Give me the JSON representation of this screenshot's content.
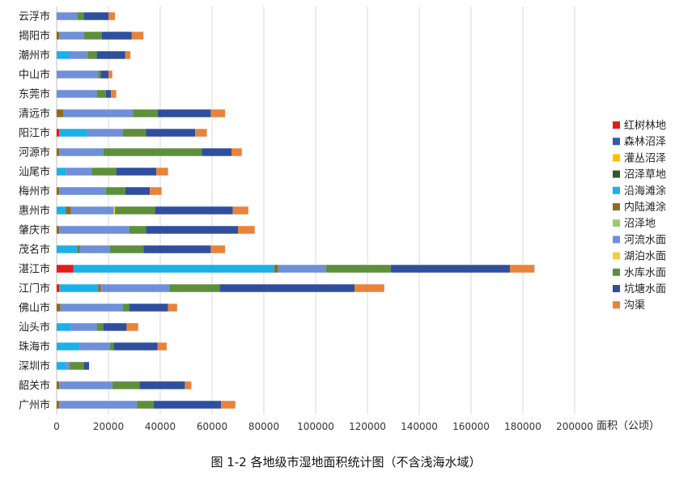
{
  "chart_data": {
    "type": "bar",
    "orientation": "horizontal",
    "stacked": true,
    "title": "图 1-2  各地级市湿地面积统计图（不含浅海水域）",
    "xlabel": "面积（公顷）",
    "ylabel": "",
    "xlim": [
      0,
      200000
    ],
    "xticks": [
      "0",
      "20000",
      "40000",
      "60000",
      "80000",
      "100000",
      "120000",
      "140000",
      "160000",
      "180000",
      "200000"
    ],
    "grid": true,
    "legend_position": "right",
    "categories": [
      "云浮市",
      "揭阳市",
      "潮州市",
      "中山市",
      "东莞市",
      "清远市",
      "阳江市",
      "河源市",
      "汕尾市",
      "梅州市",
      "惠州市",
      "肇庆市",
      "茂名市",
      "湛江市",
      "江门市",
      "佛山市",
      "汕头市",
      "珠海市",
      "深圳市",
      "韶关市",
      "广州市"
    ],
    "series": [
      {
        "name": "红树林地",
        "color": "#e41a1c",
        "values": [
          0,
          0,
          0,
          0,
          0,
          0,
          1000,
          0,
          0,
          0,
          0,
          0,
          0,
          6500,
          1000,
          0,
          0,
          0,
          0,
          0,
          0
        ]
      },
      {
        "name": "森林沼泽",
        "color": "#2e5ea8",
        "values": [
          0,
          0,
          0,
          0,
          0,
          0,
          0,
          0,
          0,
          0,
          0,
          0,
          0,
          0,
          0,
          0,
          0,
          0,
          0,
          0,
          0
        ]
      },
      {
        "name": "灌丛沼泽",
        "color": "#ffc000",
        "values": [
          0,
          0,
          0,
          0,
          0,
          0,
          0,
          0,
          0,
          0,
          0,
          0,
          0,
          0,
          0,
          0,
          0,
          0,
          0,
          0,
          0
        ]
      },
      {
        "name": "沼泽草地",
        "color": "#375623",
        "values": [
          0,
          0,
          0,
          0,
          0,
          0,
          0,
          0,
          0,
          0,
          0,
          0,
          0,
          0,
          0,
          0,
          0,
          0,
          0,
          0,
          0
        ]
      },
      {
        "name": "沿海滩涂",
        "color": "#1cb0e8",
        "values": [
          0,
          0,
          5000,
          0,
          0,
          0,
          11000,
          0,
          3500,
          0,
          3500,
          0,
          8000,
          77500,
          15000,
          0,
          5500,
          9000,
          3500,
          0,
          0
        ]
      },
      {
        "name": "内陆滩涂",
        "color": "#8c6d1f",
        "values": [
          0,
          1000,
          0,
          0,
          0,
          2500,
          0,
          1000,
          0,
          1000,
          2000,
          1000,
          1000,
          1500,
          1000,
          1500,
          0,
          0,
          0,
          1000,
          1000
        ]
      },
      {
        "name": "沼泽地",
        "color": "#9dc96c",
        "values": [
          0,
          0,
          0,
          0,
          0,
          0,
          0,
          0,
          0,
          0,
          0,
          0,
          0,
          0,
          0,
          0,
          0,
          0,
          0,
          0,
          0
        ]
      },
      {
        "name": "河流水面",
        "color": "#6f90d8",
        "values": [
          8000,
          9500,
          7000,
          16000,
          15500,
          27000,
          13500,
          17000,
          10000,
          18000,
          16500,
          27000,
          11500,
          18500,
          26500,
          24000,
          10000,
          11500,
          1500,
          20500,
          30000
        ]
      },
      {
        "name": "湖泊水面",
        "color": "#f2d03a",
        "values": [
          0,
          0,
          0,
          0,
          0,
          0,
          0,
          0,
          0,
          0,
          500,
          0,
          0,
          0,
          0,
          0,
          0,
          0,
          0,
          0,
          0
        ]
      },
      {
        "name": "水库水面",
        "color": "#5f8f3a",
        "values": [
          2500,
          7000,
          3500,
          1000,
          3500,
          9500,
          9000,
          38000,
          9500,
          7500,
          15500,
          6500,
          13000,
          25000,
          19500,
          2500,
          2500,
          1500,
          5500,
          10500,
          6500
        ]
      },
      {
        "name": "坑塘水面",
        "color": "#2f4f9e",
        "values": [
          9500,
          11500,
          11000,
          3000,
          2000,
          20500,
          19000,
          11500,
          15500,
          9500,
          30000,
          35500,
          26000,
          46000,
          52000,
          15000,
          9000,
          17000,
          2000,
          17500,
          26000
        ]
      },
      {
        "name": "沟渠",
        "color": "#e9833a",
        "values": [
          2500,
          4500,
          2000,
          1500,
          2000,
          5500,
          4500,
          4000,
          4500,
          4500,
          6000,
          6500,
          5500,
          9500,
          11500,
          3500,
          4500,
          3500,
          0,
          2500,
          5500
        ]
      }
    ]
  }
}
